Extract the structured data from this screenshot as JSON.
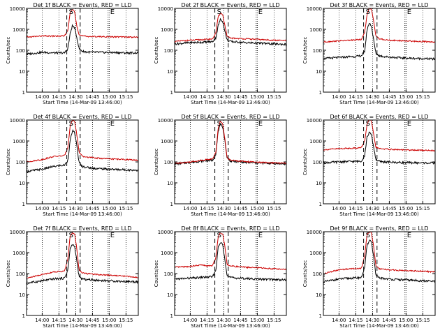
{
  "page": {
    "background": "#ffffff",
    "axis_color": "#000000",
    "events_color": "#000000",
    "lld_color": "#cc0000"
  },
  "shared": {
    "xlabel": "Start Time (14-Mar-09 13:46:00)",
    "ylabel": "Counts/sec",
    "xtick_labels": [
      "14:00",
      "14:15",
      "14:30",
      "14:45",
      "15:00",
      "15:15"
    ],
    "ytick_labels": [
      "1",
      "10",
      "100",
      "1000",
      "10000"
    ]
  },
  "chart_data": [
    {
      "type": "line",
      "title": "Det 1f BLACK = Events, RED = LLD",
      "xlabel": "Start Time (14-Mar-09 13:46:00)",
      "ylabel": "Counts/sec",
      "y_scale": "log",
      "ylim": [
        1,
        10000
      ],
      "x": [
        "13:46",
        "14:00",
        "14:10",
        "14:15",
        "14:20",
        "14:23",
        "14:25",
        "14:27",
        "14:29",
        "14:31",
        "14:33",
        "14:36",
        "14:40",
        "14:45",
        "14:50",
        "15:00",
        "15:15",
        "15:26"
      ],
      "series": [
        {
          "name": "Events",
          "color": "#000000",
          "values": [
            65,
            80,
            75,
            75,
            75,
            120,
            600,
            1500,
            1200,
            400,
            120,
            90,
            82,
            80,
            80,
            78,
            75,
            75
          ]
        },
        {
          "name": "LLD",
          "color": "#cc0000",
          "values": [
            420,
            480,
            470,
            470,
            480,
            900,
            6000,
            9000,
            7000,
            1500,
            550,
            480,
            460,
            450,
            450,
            440,
            430,
            420
          ]
        }
      ],
      "markers": [
        {
          "label": "S",
          "x": "14:22",
          "style": "dashed"
        },
        {
          "label": "",
          "x": "14:34",
          "style": "dashed"
        },
        {
          "label": "E",
          "x": "14:59",
          "style": "dotted"
        }
      ],
      "grid": "vertical dotted"
    },
    {
      "type": "line",
      "title": "Det 2f BLACK = Events, RED = LLD",
      "xlabel": "Start Time (14-Mar-09 13:46:00)",
      "ylabel": "Counts/sec",
      "y_scale": "log",
      "ylim": [
        1,
        10000
      ],
      "x": [
        "13:46",
        "14:00",
        "14:10",
        "14:15",
        "14:20",
        "14:23",
        "14:25",
        "14:27",
        "14:29",
        "14:31",
        "14:33",
        "14:36",
        "14:40",
        "14:45",
        "14:50",
        "15:00",
        "15:15",
        "15:26"
      ],
      "series": [
        {
          "name": "Events",
          "color": "#000000",
          "values": [
            200,
            230,
            240,
            250,
            260,
            400,
            1500,
            3000,
            2500,
            800,
            300,
            260,
            250,
            240,
            230,
            220,
            200,
            190
          ]
        },
        {
          "name": "LLD",
          "color": "#cc0000",
          "values": [
            260,
            300,
            320,
            330,
            350,
            700,
            4000,
            6000,
            5000,
            1500,
            450,
            380,
            370,
            360,
            350,
            330,
            300,
            290
          ]
        }
      ],
      "markers": [
        {
          "label": "S",
          "x": "14:22",
          "style": "dashed"
        },
        {
          "label": "",
          "x": "14:34",
          "style": "dashed"
        },
        {
          "label": "E",
          "x": "14:59",
          "style": "dotted"
        }
      ],
      "grid": "vertical dotted"
    },
    {
      "type": "line",
      "title": "Det 3f BLACK = Events, RED = LLD",
      "xlabel": "Start Time (14-Mar-09 13:46:00)",
      "ylabel": "Counts/sec",
      "y_scale": "log",
      "ylim": [
        1,
        10000
      ],
      "x": [
        "13:46",
        "14:00",
        "14:10",
        "14:15",
        "14:20",
        "14:23",
        "14:25",
        "14:27",
        "14:29",
        "14:31",
        "14:33",
        "14:36",
        "14:40",
        "14:45",
        "14:50",
        "15:00",
        "15:15",
        "15:26"
      ],
      "series": [
        {
          "name": "Events",
          "color": "#000000",
          "values": [
            40,
            45,
            50,
            50,
            55,
            90,
            900,
            2000,
            1500,
            300,
            70,
            55,
            50,
            48,
            45,
            42,
            40,
            38
          ]
        },
        {
          "name": "LLD",
          "color": "#cc0000",
          "values": [
            250,
            280,
            300,
            310,
            330,
            700,
            5000,
            10000,
            9000,
            2500,
            500,
            350,
            320,
            300,
            290,
            280,
            260,
            250
          ]
        }
      ],
      "markers": [
        {
          "label": "S",
          "x": "14:22",
          "style": "dashed"
        },
        {
          "label": "",
          "x": "14:34",
          "style": "dashed"
        },
        {
          "label": "E",
          "x": "14:59",
          "style": "dotted"
        }
      ],
      "grid": "vertical dotted"
    },
    {
      "type": "line",
      "title": "Det 4f BLACK = Events, RED = LLD",
      "xlabel": "Start Time (14-Mar-09 13:46:00)",
      "ylabel": "Counts/sec",
      "y_scale": "log",
      "ylim": [
        1,
        10000
      ],
      "x": [
        "13:46",
        "14:00",
        "14:10",
        "14:15",
        "14:20",
        "14:23",
        "14:25",
        "14:27",
        "14:29",
        "14:31",
        "14:33",
        "14:36",
        "14:40",
        "14:45",
        "14:50",
        "15:00",
        "15:15",
        "15:26"
      ],
      "series": [
        {
          "name": "Events",
          "color": "#000000",
          "values": [
            35,
            45,
            60,
            65,
            70,
            120,
            1000,
            3000,
            2500,
            600,
            90,
            60,
            55,
            50,
            48,
            45,
            42,
            40
          ]
        },
        {
          "name": "LLD",
          "color": "#cc0000",
          "values": [
            100,
            130,
            180,
            190,
            200,
            500,
            5000,
            10000,
            9000,
            2000,
            300,
            180,
            170,
            160,
            150,
            140,
            130,
            120
          ]
        }
      ],
      "markers": [
        {
          "label": "S",
          "x": "14:22",
          "style": "dashed"
        },
        {
          "label": "",
          "x": "14:34",
          "style": "dashed"
        },
        {
          "label": "E",
          "x": "14:59",
          "style": "dotted"
        }
      ],
      "grid": "vertical dotted"
    },
    {
      "type": "line",
      "title": "Det 5f BLACK = Events, RED = LLD",
      "xlabel": "Start Time (14-Mar-09 13:46:00)",
      "ylabel": "Counts/sec",
      "y_scale": "log",
      "ylim": [
        1,
        10000
      ],
      "x": [
        "13:46",
        "14:00",
        "14:10",
        "14:15",
        "14:20",
        "14:23",
        "14:25",
        "14:27",
        "14:29",
        "14:31",
        "14:33",
        "14:36",
        "14:40",
        "14:45",
        "14:50",
        "15:00",
        "15:15",
        "15:26"
      ],
      "series": [
        {
          "name": "Events",
          "color": "#000000",
          "values": [
            80,
            95,
            110,
            115,
            120,
            250,
            3000,
            6000,
            5000,
            1000,
            150,
            110,
            105,
            100,
            95,
            90,
            85,
            80
          ]
        },
        {
          "name": "LLD",
          "color": "#cc0000",
          "values": [
            85,
            100,
            120,
            130,
            140,
            300,
            4000,
            9000,
            7000,
            1200,
            160,
            120,
            115,
            110,
            105,
            95,
            90,
            85
          ]
        }
      ],
      "markers": [
        {
          "label": "S",
          "x": "14:22",
          "style": "dashed"
        },
        {
          "label": "",
          "x": "14:34",
          "style": "dashed"
        },
        {
          "label": "E",
          "x": "14:59",
          "style": "dotted"
        }
      ],
      "grid": "vertical dotted"
    },
    {
      "type": "line",
      "title": "Det 6f BLACK = Events, RED = LLD",
      "xlabel": "Start Time (14-Mar-09 13:46:00)",
      "ylabel": "Counts/sec",
      "y_scale": "log",
      "ylim": [
        1,
        10000
      ],
      "x": [
        "13:46",
        "14:00",
        "14:10",
        "14:15",
        "14:20",
        "14:23",
        "14:25",
        "14:27",
        "14:29",
        "14:31",
        "14:33",
        "14:36",
        "14:40",
        "14:45",
        "14:50",
        "15:00",
        "15:15",
        "15:26"
      ],
      "series": [
        {
          "name": "Events",
          "color": "#000000",
          "values": [
            90,
            100,
            105,
            105,
            110,
            200,
            1500,
            2500,
            2000,
            500,
            130,
            105,
            100,
            98,
            95,
            92,
            90,
            88
          ]
        },
        {
          "name": "LLD",
          "color": "#cc0000",
          "values": [
            380,
            430,
            450,
            460,
            480,
            1000,
            6000,
            10000,
            9000,
            2000,
            500,
            430,
            420,
            400,
            390,
            370,
            360,
            350
          ]
        }
      ],
      "markers": [
        {
          "label": "S",
          "x": "14:22",
          "style": "dashed"
        },
        {
          "label": "",
          "x": "14:34",
          "style": "dashed"
        },
        {
          "label": "E",
          "x": "14:59",
          "style": "dotted"
        }
      ],
      "grid": "vertical dotted"
    },
    {
      "type": "line",
      "title": "Det 7f BLACK = Events, RED = LLD",
      "xlabel": "Start Time (14-Mar-09 13:46:00)",
      "ylabel": "Counts/sec",
      "y_scale": "log",
      "ylim": [
        1,
        10000
      ],
      "x": [
        "13:46",
        "14:00",
        "14:10",
        "14:15",
        "14:20",
        "14:23",
        "14:25",
        "14:27",
        "14:29",
        "14:31",
        "14:33",
        "14:36",
        "14:40",
        "14:45",
        "14:50",
        "15:00",
        "15:15",
        "15:26"
      ],
      "series": [
        {
          "name": "Events",
          "color": "#000000",
          "values": [
            35,
            45,
            55,
            58,
            60,
            150,
            1500,
            2500,
            2000,
            400,
            70,
            55,
            52,
            50,
            48,
            45,
            42,
            40
          ]
        },
        {
          "name": "LLD",
          "color": "#cc0000",
          "values": [
            60,
            90,
            120,
            125,
            130,
            500,
            6000,
            9000,
            8000,
            1500,
            150,
            110,
            100,
            95,
            90,
            85,
            75,
            65
          ]
        }
      ],
      "markers": [
        {
          "label": "S",
          "x": "14:22",
          "style": "dashed"
        },
        {
          "label": "",
          "x": "14:34",
          "style": "dashed"
        },
        {
          "label": "E",
          "x": "14:59",
          "style": "dotted"
        }
      ],
      "grid": "vertical dotted"
    },
    {
      "type": "line",
      "title": "Det 8f BLACK = Events, RED = LLD",
      "xlabel": "Start Time (14-Mar-09 13:46:00)",
      "ylabel": "Counts/sec",
      "y_scale": "log",
      "ylim": [
        1,
        10000
      ],
      "x": [
        "13:46",
        "14:00",
        "14:10",
        "14:15",
        "14:20",
        "14:23",
        "14:25",
        "14:27",
        "14:29",
        "14:31",
        "14:33",
        "14:36",
        "14:40",
        "14:45",
        "14:50",
        "15:00",
        "15:15",
        "15:26"
      ],
      "series": [
        {
          "name": "Events",
          "color": "#000000",
          "values": [
            55,
            60,
            65,
            68,
            70,
            150,
            1800,
            3000,
            2500,
            500,
            80,
            65,
            62,
            60,
            58,
            55,
            52,
            50
          ]
        },
        {
          "name": "LLD",
          "color": "#cc0000",
          "values": [
            200,
            220,
            260,
            230,
            240,
            600,
            6000,
            9000,
            8000,
            2000,
            280,
            230,
            220,
            210,
            200,
            190,
            170,
            160
          ]
        }
      ],
      "markers": [
        {
          "label": "S",
          "x": "14:22",
          "style": "dashed"
        },
        {
          "label": "",
          "x": "14:34",
          "style": "dashed"
        },
        {
          "label": "E",
          "x": "14:59",
          "style": "dotted"
        }
      ],
      "grid": "vertical dotted"
    },
    {
      "type": "line",
      "title": "Det 9f BLACK = Events, RED = LLD",
      "xlabel": "Start Time (14-Mar-09 13:46:00)",
      "ylabel": "Counts/sec",
      "y_scale": "log",
      "ylim": [
        1,
        10000
      ],
      "x": [
        "13:46",
        "14:00",
        "14:10",
        "14:15",
        "14:20",
        "14:23",
        "14:25",
        "14:27",
        "14:29",
        "14:31",
        "14:33",
        "14:36",
        "14:40",
        "14:45",
        "14:50",
        "15:00",
        "15:15",
        "15:26"
      ],
      "series": [
        {
          "name": "Events",
          "color": "#000000",
          "values": [
            40,
            55,
            60,
            62,
            65,
            200,
            2000,
            4000,
            3500,
            600,
            80,
            62,
            58,
            55,
            52,
            50,
            45,
            42
          ]
        },
        {
          "name": "LLD",
          "color": "#cc0000",
          "values": [
            100,
            150,
            170,
            175,
            180,
            700,
            7000,
            10000,
            9000,
            2000,
            220,
            170,
            160,
            150,
            145,
            140,
            130,
            120
          ]
        }
      ],
      "markers": [
        {
          "label": "S",
          "x": "14:22",
          "style": "dashed"
        },
        {
          "label": "",
          "x": "14:34",
          "style": "dashed"
        },
        {
          "label": "E",
          "x": "14:59",
          "style": "dotted"
        }
      ],
      "grid": "vertical dotted"
    }
  ]
}
